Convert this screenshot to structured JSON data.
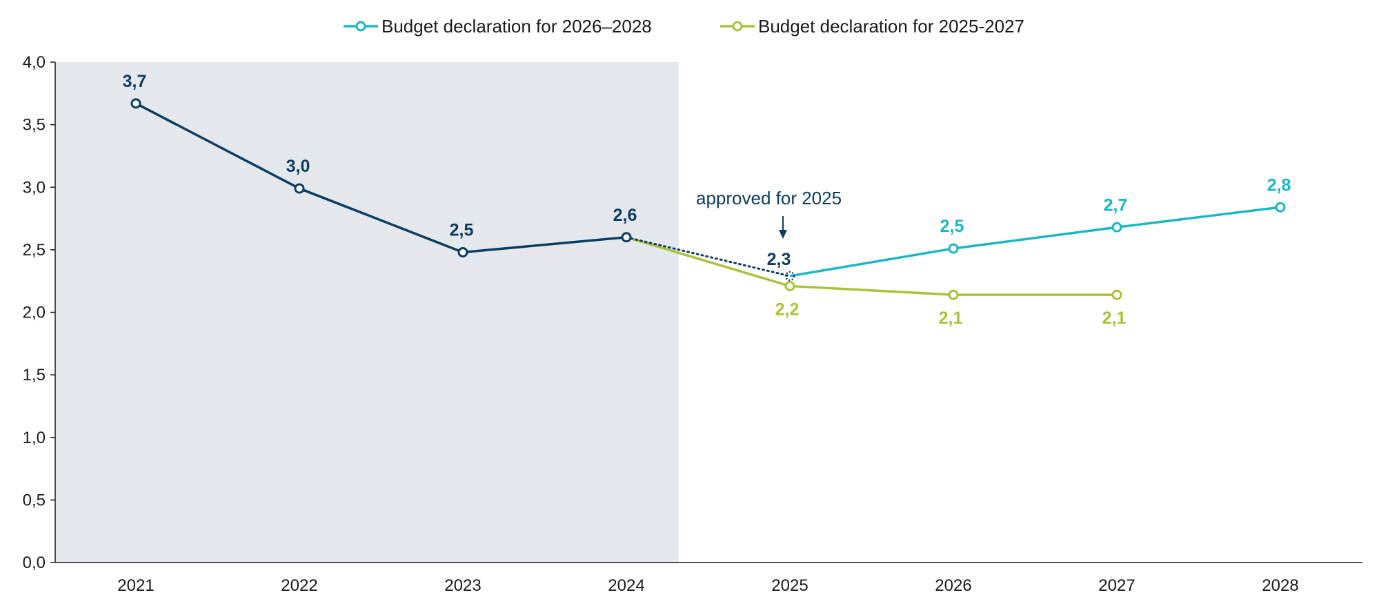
{
  "chart_data": {
    "type": "line",
    "title": "",
    "xlabel": "",
    "ylabel": "",
    "categories": [
      "2021",
      "2022",
      "2023",
      "2024",
      "2025",
      "2026",
      "2027",
      "2028"
    ],
    "ylim": [
      0,
      4
    ],
    "yticks": [
      "0,0",
      "0,5",
      "1,0",
      "1,5",
      "2,0",
      "2,5",
      "3,0",
      "3,5",
      "4,0"
    ],
    "shaded_region": {
      "from": "2021",
      "to": "2024"
    },
    "legend_position": "top-center",
    "series": [
      {
        "key": "actual",
        "values": [
          3.67,
          2.99,
          2.48,
          2.6,
          null,
          null,
          null,
          null
        ],
        "labels": [
          "3,7",
          "3,0",
          "2,5",
          "2,6",
          "",
          "",
          "",
          ""
        ],
        "color": "#0b3c61"
      },
      {
        "key": "approved",
        "style": "dotted",
        "values": [
          null,
          null,
          null,
          2.6,
          2.29,
          null,
          null,
          null
        ],
        "labels": [
          "",
          "",
          "",
          "",
          "2,3",
          "",
          "",
          ""
        ],
        "color": "#0b3c61"
      },
      {
        "name": "Budget declaration for 2026–2028",
        "values": [
          null,
          null,
          null,
          null,
          2.29,
          2.51,
          2.68,
          2.84
        ],
        "labels": [
          "",
          "",
          "",
          "",
          "",
          "2,5",
          "2,7",
          "2,8"
        ],
        "color": "#1ab6c6"
      },
      {
        "name": "Budget declaration for 2025-2027",
        "values": [
          null,
          null,
          null,
          2.6,
          2.21,
          2.14,
          2.14,
          null
        ],
        "labels": [
          "",
          "",
          "",
          "",
          "2,2",
          "2,1",
          "2,1",
          ""
        ],
        "color": "#a8c23a"
      }
    ],
    "annotation": {
      "text": "approved for 2025",
      "x": "2025"
    }
  },
  "colors": {
    "shade": "#e4e8ec",
    "axis": "#1a1a1a",
    "annotation": "#0b3c61"
  }
}
